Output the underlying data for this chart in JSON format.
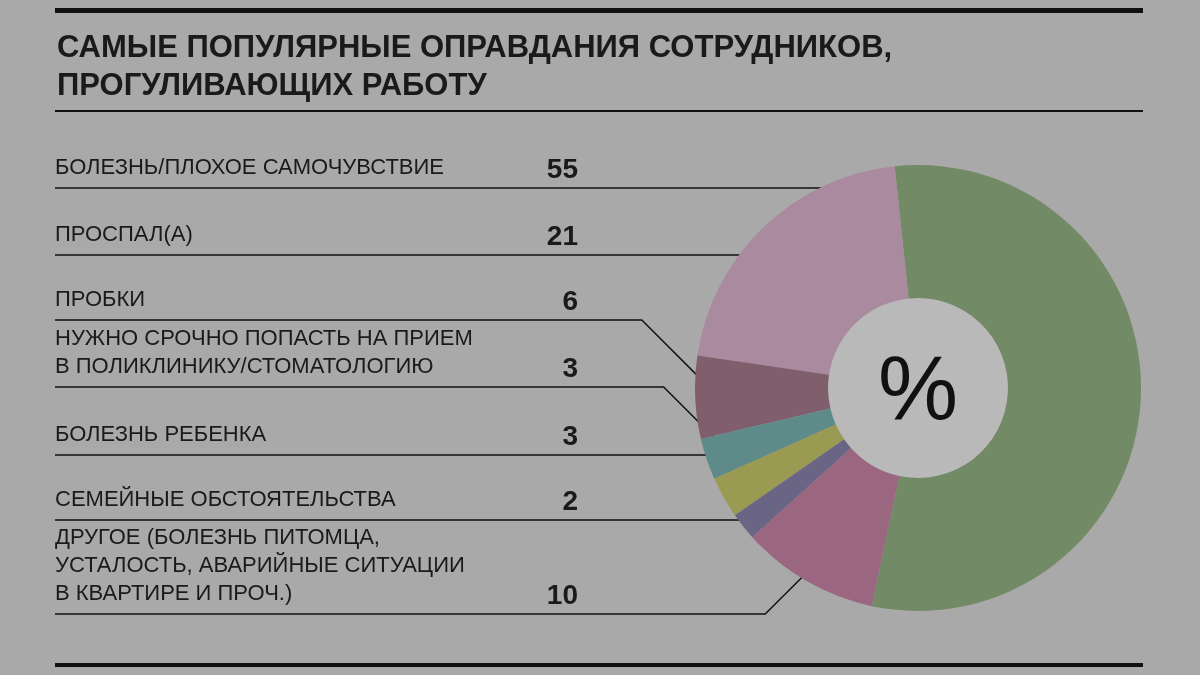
{
  "chart_data": {
    "type": "donut",
    "title": "САМЫЕ ПОПУЛЯРНЫЕ ОПРАВДАНИЯ СОТРУДНИКОВ,\nПРОГУЛИВАЮЩИХ РАБОТУ",
    "categories": [
      "БОЛЕЗНЬ/ПЛОХОЕ САМОЧУВСТВИЕ",
      "ПРОСПАЛ(А)",
      "ПРОБКИ",
      "НУЖНО СРОЧНО ПОПАСТЬ НА ПРИЕМ\nВ ПОЛИКЛИНИКУ/СТОМАТОЛОГИЮ",
      "БОЛЕЗНЬ РЕБЕНКА",
      "СЕМЕЙНЫЕ ОБСТОЯТЕЛЬСТВА",
      "ДРУГОЕ (БОЛЕЗНЬ ПИТОМЦА,\nУСТАЛОСТЬ, АВАРИЙНЫЕ СИТУАЦИИ\nВ КВАРТИРЕ И ПРОЧ.)"
    ],
    "values": [
      55,
      21,
      6,
      3,
      3,
      2,
      10
    ],
    "colors": [
      "#728a65",
      "#a98a9e",
      "#805e6c",
      "#5e8a8a",
      "#9a9a52",
      "#6a6585",
      "#9a6680"
    ],
    "annotations": [
      "%"
    ],
    "data_labels": true
  }
}
